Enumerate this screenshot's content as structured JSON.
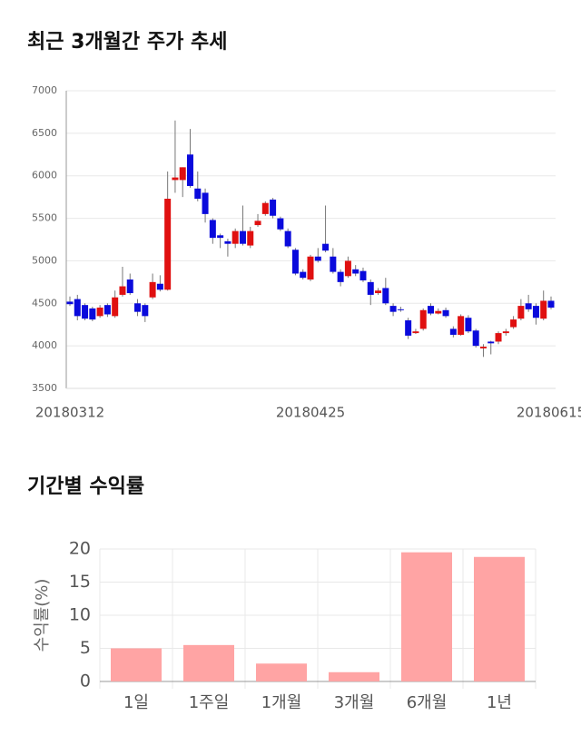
{
  "chart_data": [
    {
      "type": "candlestick",
      "title": "최근 3개월간 주가 추세",
      "categories": [
        "20180312",
        null,
        null,
        null,
        null,
        null,
        null,
        null,
        null,
        null,
        null,
        null,
        null,
        null,
        null,
        null,
        null,
        null,
        null,
        null,
        null,
        null,
        null,
        null,
        null,
        null,
        null,
        null,
        null,
        null,
        null,
        null,
        "20180425",
        null,
        null,
        null,
        null,
        null,
        null,
        null,
        null,
        null,
        null,
        null,
        null,
        null,
        null,
        null,
        null,
        null,
        null,
        null,
        null,
        null,
        null,
        null,
        null,
        null,
        null,
        null,
        null,
        null,
        null,
        null,
        "20180615"
      ],
      "open": [
        4520,
        4550,
        4480,
        4440,
        4350,
        4480,
        4350,
        4600,
        4780,
        4500,
        4480,
        4570,
        4730,
        4660,
        5950,
        5950,
        6250,
        5850,
        5800,
        5480,
        5300,
        5230,
        5200,
        5350,
        5180,
        5420,
        5550,
        5720,
        5500,
        5350,
        5130,
        4870,
        4780,
        5050,
        5200,
        5050,
        4870,
        4820,
        4900,
        4880,
        4750,
        4620,
        4680,
        4470,
        4430,
        4300,
        4150,
        4200,
        4470,
        4380,
        4420,
        4200,
        4130,
        4330,
        4180,
        3970,
        4050,
        4050,
        4150,
        4220,
        4320,
        4500,
        4470,
        4320,
        4530
      ],
      "high": [
        4580,
        4600,
        4500,
        4460,
        4480,
        4500,
        4650,
        4930,
        4850,
        4550,
        4500,
        4850,
        4830,
        6050,
        6650,
        6100,
        6550,
        6050,
        5850,
        5500,
        5320,
        5260,
        5380,
        5650,
        5400,
        5550,
        5700,
        5740,
        5520,
        5380,
        5150,
        4900,
        5070,
        5150,
        5650,
        5150,
        4900,
        5050,
        4950,
        4920,
        4780,
        4680,
        4800,
        4500,
        4460,
        4330,
        4200,
        4440,
        4500,
        4440,
        4450,
        4230,
        4370,
        4360,
        4200,
        4020,
        4060,
        4170,
        4200,
        4350,
        4550,
        4600,
        4500,
        4650,
        4580
      ],
      "low": [
        4470,
        4300,
        4300,
        4290,
        4330,
        4340,
        4330,
        4580,
        4600,
        4350,
        4280,
        4550,
        4640,
        4650,
        5800,
        5750,
        5860,
        5700,
        5450,
        5200,
        5150,
        5050,
        5150,
        5180,
        5150,
        5400,
        5530,
        5500,
        5350,
        5150,
        4830,
        4780,
        4760,
        4980,
        5100,
        4850,
        4700,
        4800,
        4820,
        4750,
        4480,
        4600,
        4480,
        4350,
        4400,
        4080,
        4140,
        4180,
        4360,
        4370,
        4330,
        4100,
        4120,
        4150,
        3980,
        3870,
        3900,
        4020,
        4120,
        4200,
        4300,
        4400,
        4250,
        4300,
        4430
      ],
      "close": [
        4490,
        4350,
        4320,
        4310,
        4450,
        4370,
        4570,
        4700,
        4620,
        4400,
        4350,
        4750,
        4660,
        5730,
        5980,
        6100,
        5880,
        5730,
        5550,
        5270,
        5270,
        5200,
        5350,
        5200,
        5350,
        5470,
        5680,
        5530,
        5370,
        5170,
        4850,
        4800,
        5050,
        5000,
        5120,
        4870,
        4750,
        5000,
        4850,
        4770,
        4600,
        4650,
        4500,
        4400,
        4420,
        4120,
        4170,
        4420,
        4380,
        4410,
        4350,
        4130,
        4350,
        4170,
        4000,
        3990,
        4030,
        4150,
        4170,
        4310,
        4470,
        4430,
        4330,
        4530,
        4450
      ],
      "up_color": "#e01010",
      "down_color": "#0a0adc",
      "ylim": [
        3500,
        7000
      ],
      "yticks": [
        3500,
        4000,
        4500,
        5000,
        5500,
        6000,
        6500,
        7000
      ],
      "grid": true
    },
    {
      "type": "bar",
      "title": "기간별 수익률",
      "y_label": "수익률(%)",
      "categories": [
        "1일",
        "1주일",
        "1개월",
        "3개월",
        "6개월",
        "1년"
      ],
      "values": [
        5.0,
        5.5,
        2.7,
        1.4,
        19.5,
        18.8
      ],
      "color": "#ffa4a4",
      "ylim": [
        0,
        20
      ],
      "yticks": [
        0,
        5,
        10,
        15,
        20
      ],
      "grid": true
    }
  ]
}
